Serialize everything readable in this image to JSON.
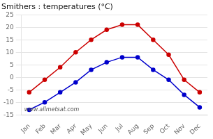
{
  "chart_data": {
    "type": "line",
    "title": "Smithers : temperatures (°C)",
    "categories": [
      "Jan",
      "Feb",
      "Mar",
      "Apr",
      "May",
      "Jun",
      "Jul",
      "Aug",
      "Sep",
      "Oct",
      "Nov",
      "Dec"
    ],
    "series": [
      {
        "color": "#cc0000",
        "values": [
          -6,
          -1,
          4,
          10,
          15,
          19,
          21,
          21,
          15,
          9,
          -1,
          -6
        ]
      },
      {
        "color": "#0000cc",
        "values": [
          -13,
          -10,
          -6,
          -2,
          3,
          6,
          8,
          8,
          3,
          -1,
          -7,
          -12
        ]
      }
    ],
    "ylim": [
      -15,
      25
    ],
    "yticks": [
      -15,
      -10,
      -5,
      0,
      5,
      10,
      15,
      20,
      25
    ],
    "grid": "y",
    "marker": "circle",
    "annotations": [
      "www.allmetsat.com"
    ]
  }
}
